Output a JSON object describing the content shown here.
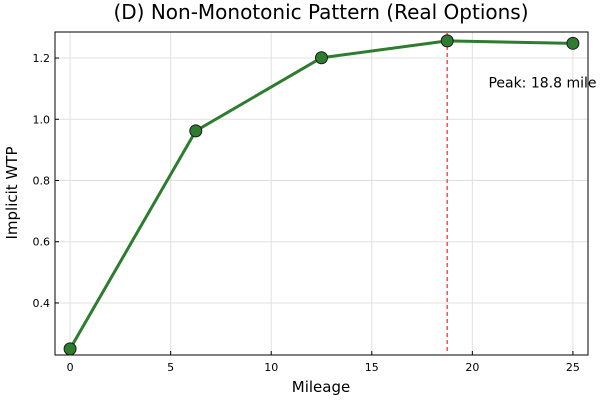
{
  "chart_data": {
    "type": "line",
    "title": "(D) Non-Monotonic Pattern (Real Options)",
    "xlabel": "Mileage",
    "ylabel": "Implicit WTP",
    "x": [
      0,
      6.25,
      12.5,
      18.75,
      25
    ],
    "series": [
      {
        "values": [
          0.25,
          0.962,
          1.201,
          1.256,
          1.248
        ],
        "color": "#2e7d2e"
      }
    ],
    "xlim": [
      -0.75,
      25.75
    ],
    "ylim": [
      0.23,
      1.285
    ],
    "xticks": [
      0,
      5,
      10,
      15,
      20,
      25
    ],
    "yticks": [
      0.4,
      0.6,
      0.8,
      1.0,
      1.2
    ],
    "xtick_labels": [
      "0",
      "5",
      "10",
      "15",
      "20",
      "25"
    ],
    "ytick_labels": [
      "0.4",
      "0.6",
      "0.8",
      "1.0",
      "1.2"
    ],
    "grid": true,
    "peak_line": {
      "x": 18.75,
      "color": "#f05454",
      "style": "dashed"
    },
    "annotation": {
      "text": "Peak: 18.8 mile",
      "x": 20.8,
      "y": 1.12
    }
  }
}
